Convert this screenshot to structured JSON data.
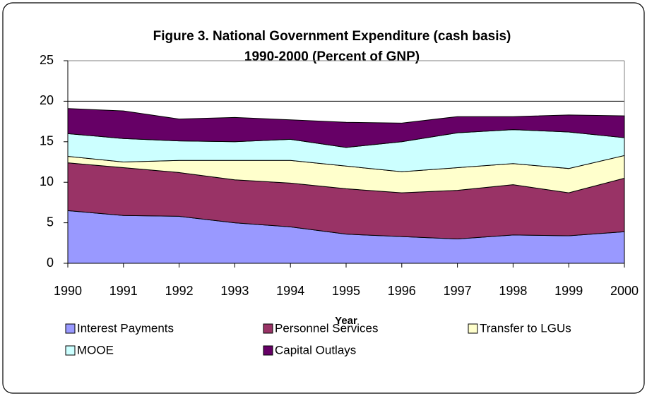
{
  "chart_data": {
    "type": "stacked_area",
    "title": [
      "Figure 3.  National Government Expenditure (cash basis)",
      "1990-2000 (Percent of GNP)"
    ],
    "xlabel": "Year",
    "categories": [
      "1990",
      "1991",
      "1992",
      "1993",
      "1994",
      "1995",
      "1996",
      "1997",
      "1998",
      "1999",
      "2000"
    ],
    "series": [
      {
        "name": "Interest Payments",
        "color": "#9999ff",
        "values": [
          6.5,
          5.9,
          5.8,
          5.0,
          4.5,
          3.6,
          3.3,
          3.0,
          3.5,
          3.4,
          3.9
        ]
      },
      {
        "name": "Personnel Services",
        "color": "#993366",
        "values": [
          5.9,
          5.9,
          5.4,
          5.3,
          5.4,
          5.6,
          5.4,
          6.0,
          6.2,
          5.3,
          6.6
        ]
      },
      {
        "name": "Transfer to LGUs",
        "color": "#ffffcc",
        "values": [
          0.8,
          0.7,
          1.5,
          2.4,
          2.8,
          2.8,
          2.6,
          2.8,
          2.6,
          3.0,
          2.8
        ]
      },
      {
        "name": "MOOE",
        "color": "#ccffff",
        "values": [
          2.8,
          2.9,
          2.4,
          2.3,
          2.6,
          2.3,
          3.7,
          4.3,
          4.2,
          4.5,
          2.2
        ]
      },
      {
        "name": "Capital Outlays",
        "color": "#660066",
        "values": [
          3.1,
          3.4,
          2.7,
          3.0,
          2.4,
          3.1,
          2.3,
          2.0,
          1.6,
          2.1,
          2.7
        ]
      }
    ],
    "ylim": [
      0,
      25
    ],
    "yticks": [
      0,
      5,
      10,
      15,
      20,
      25
    ],
    "grid": true,
    "legend": "bottom"
  }
}
